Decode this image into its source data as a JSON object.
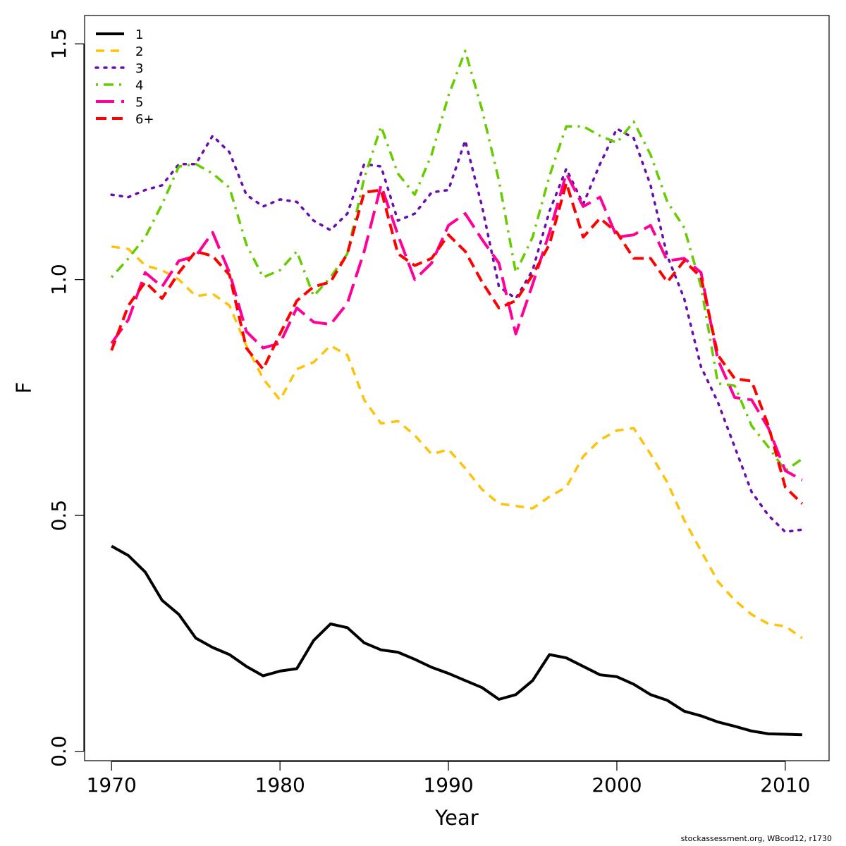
{
  "chart_data": {
    "type": "line",
    "title": "",
    "xlabel": "Year",
    "ylabel": "F",
    "xlim": [
      1968.4,
      2012.6
    ],
    "ylim": [
      -0.02,
      1.56
    ],
    "x_ticks": [
      1970,
      1980,
      1990,
      2000,
      2010
    ],
    "y_ticks": [
      0.0,
      0.5,
      1.0,
      1.5
    ],
    "y_tick_labels": [
      "0.0",
      "0.5",
      "1.0",
      "1.5"
    ],
    "grid": false,
    "legend_position": "top-left",
    "x": [
      1970,
      1971,
      1972,
      1973,
      1974,
      1975,
      1976,
      1977,
      1978,
      1979,
      1980,
      1981,
      1982,
      1983,
      1984,
      1985,
      1986,
      1987,
      1988,
      1989,
      1990,
      1991,
      1992,
      1993,
      1994,
      1995,
      1996,
      1997,
      1998,
      1999,
      2000,
      2001,
      2002,
      2003,
      2004,
      2005,
      2006,
      2007,
      2008,
      2009,
      2010,
      2011
    ],
    "series": [
      {
        "name": "1",
        "color": "#000000",
        "dash": "solid",
        "width": 4,
        "values": [
          0.435,
          0.415,
          0.38,
          0.32,
          0.29,
          0.24,
          0.22,
          0.205,
          0.18,
          0.16,
          0.17,
          0.175,
          0.235,
          0.27,
          0.262,
          0.23,
          0.215,
          0.21,
          0.195,
          0.178,
          0.165,
          0.15,
          0.135,
          0.11,
          0.12,
          0.15,
          0.205,
          0.198,
          0.18,
          0.162,
          0.158,
          0.142,
          0.12,
          0.108,
          0.085,
          0.075,
          0.062,
          0.053,
          0.043,
          0.037,
          0.036,
          0.035
        ]
      },
      {
        "name": "2",
        "color": "#FFC20A",
        "dash": "dashed",
        "width": 3.5,
        "values": [
          1.07,
          1.065,
          1.03,
          1.02,
          1.0,
          0.965,
          0.97,
          0.945,
          0.86,
          0.79,
          0.745,
          0.81,
          0.825,
          0.86,
          0.84,
          0.745,
          0.695,
          0.7,
          0.67,
          0.63,
          0.64,
          0.6,
          0.555,
          0.525,
          0.52,
          0.515,
          0.54,
          0.56,
          0.625,
          0.66,
          0.68,
          0.685,
          0.63,
          0.57,
          0.49,
          0.425,
          0.36,
          0.32,
          0.29,
          0.27,
          0.265,
          0.24
        ]
      },
      {
        "name": "3",
        "color": "#6A0DAD",
        "dash": "dotted",
        "width": 3.5,
        "values": [
          1.18,
          1.175,
          1.19,
          1.2,
          1.245,
          1.245,
          1.305,
          1.27,
          1.18,
          1.155,
          1.17,
          1.165,
          1.125,
          1.105,
          1.14,
          1.245,
          1.24,
          1.125,
          1.14,
          1.185,
          1.19,
          1.295,
          1.155,
          0.985,
          0.96,
          1.02,
          1.145,
          1.235,
          1.16,
          1.245,
          1.32,
          1.3,
          1.2,
          1.05,
          0.96,
          0.815,
          0.74,
          0.645,
          0.55,
          0.5,
          0.465,
          0.47
        ]
      },
      {
        "name": "4",
        "color": "#66CC00",
        "dash": "dashdot",
        "width": 3.5,
        "values": [
          1.005,
          1.045,
          1.09,
          1.16,
          1.24,
          1.245,
          1.225,
          1.195,
          1.075,
          1.005,
          1.02,
          1.06,
          0.965,
          1.005,
          1.055,
          1.215,
          1.325,
          1.225,
          1.18,
          1.265,
          1.39,
          1.485,
          1.36,
          1.21,
          1.015,
          1.09,
          1.22,
          1.325,
          1.325,
          1.305,
          1.29,
          1.335,
          1.265,
          1.165,
          1.11,
          0.985,
          0.78,
          0.775,
          0.69,
          0.645,
          0.595,
          0.62
        ]
      },
      {
        "name": "5",
        "color": "#FF0099",
        "dash": "longdash",
        "width": 4,
        "values": [
          0.865,
          0.915,
          1.015,
          0.985,
          1.04,
          1.05,
          1.1,
          1.015,
          0.89,
          0.855,
          0.865,
          0.94,
          0.91,
          0.905,
          0.95,
          1.06,
          1.2,
          1.095,
          1.0,
          1.035,
          1.115,
          1.14,
          1.085,
          1.035,
          0.885,
          0.99,
          1.1,
          1.225,
          1.155,
          1.175,
          1.09,
          1.095,
          1.115,
          1.04,
          1.045,
          1.015,
          0.83,
          0.75,
          0.745,
          0.685,
          0.595,
          0.575
        ]
      },
      {
        "name": "6+",
        "color": "#FF0000",
        "dash": "shortdash",
        "width": 4,
        "values": [
          0.85,
          0.945,
          0.995,
          0.96,
          1.015,
          1.06,
          1.05,
          1.01,
          0.855,
          0.81,
          0.885,
          0.955,
          0.985,
          0.995,
          1.055,
          1.185,
          1.19,
          1.055,
          1.03,
          1.045,
          1.095,
          1.06,
          0.995,
          0.94,
          0.955,
          1.01,
          1.075,
          1.205,
          1.09,
          1.13,
          1.1,
          1.045,
          1.045,
          0.995,
          1.04,
          1.005,
          0.84,
          0.79,
          0.785,
          0.69,
          0.56,
          0.525
        ]
      }
    ]
  },
  "caption": "stockassessment.org, WBcod12, r1730"
}
